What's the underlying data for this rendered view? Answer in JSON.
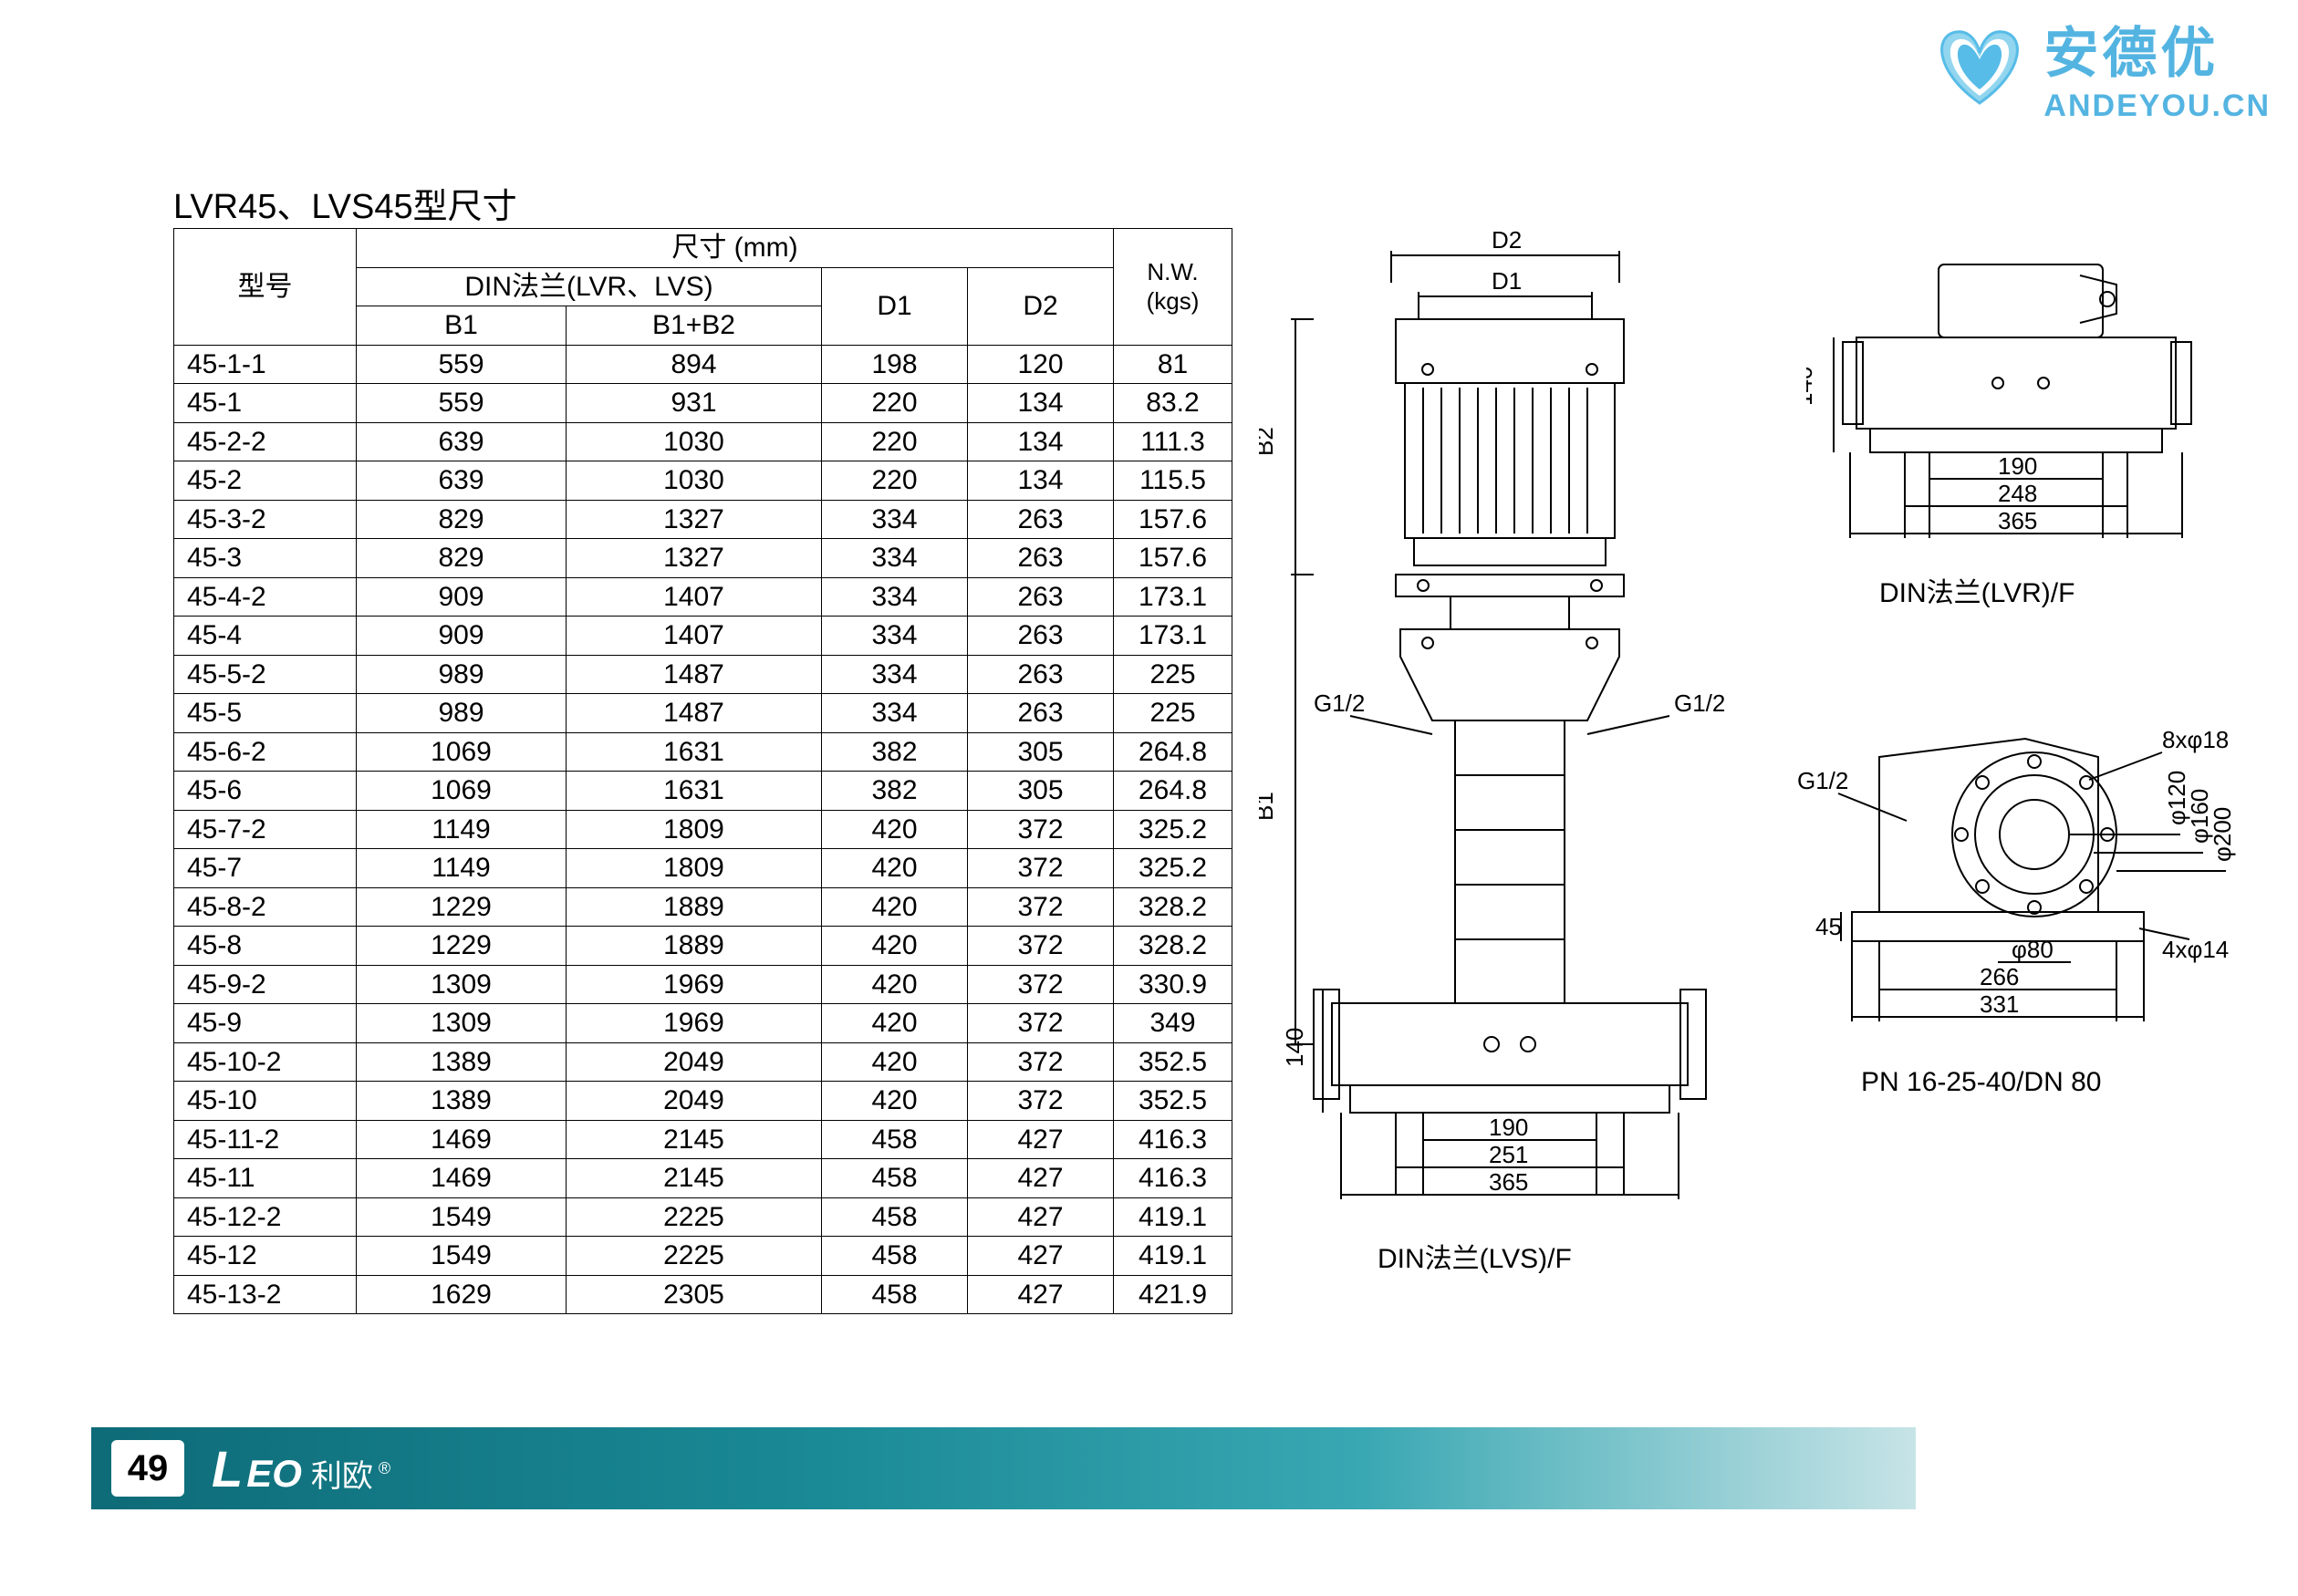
{
  "watermark": {
    "cn": "安德优",
    "en": "ANDEYOU.CN",
    "heart_color_1": "#1fa6e0",
    "heart_color_2": "#6ec7ea"
  },
  "title": "LVR45、LVS45型尺寸",
  "table": {
    "header": {
      "model": "型号",
      "dim_group": "尺寸 (mm)",
      "din_group": "DIN法兰(LVR、LVS)",
      "b1": "B1",
      "b1b2": "B1+B2",
      "d1": "D1",
      "d2": "D2",
      "nw": "N.W.\n(kgs)"
    },
    "rows": [
      [
        "45-1-1",
        "559",
        "894",
        "198",
        "120",
        "81"
      ],
      [
        "45-1",
        "559",
        "931",
        "220",
        "134",
        "83.2"
      ],
      [
        "45-2-2",
        "639",
        "1030",
        "220",
        "134",
        "111.3"
      ],
      [
        "45-2",
        "639",
        "1030",
        "220",
        "134",
        "115.5"
      ],
      [
        "45-3-2",
        "829",
        "1327",
        "334",
        "263",
        "157.6"
      ],
      [
        "45-3",
        "829",
        "1327",
        "334",
        "263",
        "157.6"
      ],
      [
        "45-4-2",
        "909",
        "1407",
        "334",
        "263",
        "173.1"
      ],
      [
        "45-4",
        "909",
        "1407",
        "334",
        "263",
        "173.1"
      ],
      [
        "45-5-2",
        "989",
        "1487",
        "334",
        "263",
        "225"
      ],
      [
        "45-5",
        "989",
        "1487",
        "334",
        "263",
        "225"
      ],
      [
        "45-6-2",
        "1069",
        "1631",
        "382",
        "305",
        "264.8"
      ],
      [
        "45-6",
        "1069",
        "1631",
        "382",
        "305",
        "264.8"
      ],
      [
        "45-7-2",
        "1149",
        "1809",
        "420",
        "372",
        "325.2"
      ],
      [
        "45-7",
        "1149",
        "1809",
        "420",
        "372",
        "325.2"
      ],
      [
        "45-8-2",
        "1229",
        "1889",
        "420",
        "372",
        "328.2"
      ],
      [
        "45-8",
        "1229",
        "1889",
        "420",
        "372",
        "328.2"
      ],
      [
        "45-9-2",
        "1309",
        "1969",
        "420",
        "372",
        "330.9"
      ],
      [
        "45-9",
        "1309",
        "1969",
        "420",
        "372",
        "349"
      ],
      [
        "45-10-2",
        "1389",
        "2049",
        "420",
        "372",
        "352.5"
      ],
      [
        "45-10",
        "1389",
        "2049",
        "420",
        "372",
        "352.5"
      ],
      [
        "45-11-2",
        "1469",
        "2145",
        "458",
        "427",
        "416.3"
      ],
      [
        "45-11",
        "1469",
        "2145",
        "458",
        "427",
        "416.3"
      ],
      [
        "45-12-2",
        "1549",
        "2225",
        "458",
        "427",
        "419.1"
      ],
      [
        "45-12",
        "1549",
        "2225",
        "458",
        "427",
        "419.1"
      ],
      [
        "45-13-2",
        "1629",
        "2305",
        "458",
        "427",
        "421.9"
      ]
    ]
  },
  "diagrams": {
    "side_view": {
      "label": "DIN法兰(LVS)/F",
      "dims": {
        "d2": "D2",
        "d1": "D1",
        "b2": "B2",
        "b1": "B1",
        "g12_left": "G1/2",
        "g12_right": "G1/2",
        "base_140": "140",
        "base_190": "190",
        "base_251": "251",
        "base_365": "365"
      }
    },
    "top_view": {
      "label": "DIN法兰(LVR)/F",
      "dims": {
        "h_140": "140",
        "w_190": "190",
        "w_248": "248",
        "w_365": "365"
      }
    },
    "flange_view": {
      "label": "PN 16-25-40/DN 80",
      "dims": {
        "g12": "G1/2",
        "holes_top": "8xφ18",
        "phi_120": "φ120",
        "phi_160": "φ160",
        "phi_200": "φ200",
        "h_45": "45",
        "phi_80": "φ80",
        "w_266": "266",
        "w_331": "331",
        "holes_bot": "4xφ14"
      }
    }
  },
  "footer": {
    "page_num": "49",
    "logo_l": "L",
    "logo_eo": "EO",
    "logo_cn": "利欧",
    "logo_r": "®"
  }
}
